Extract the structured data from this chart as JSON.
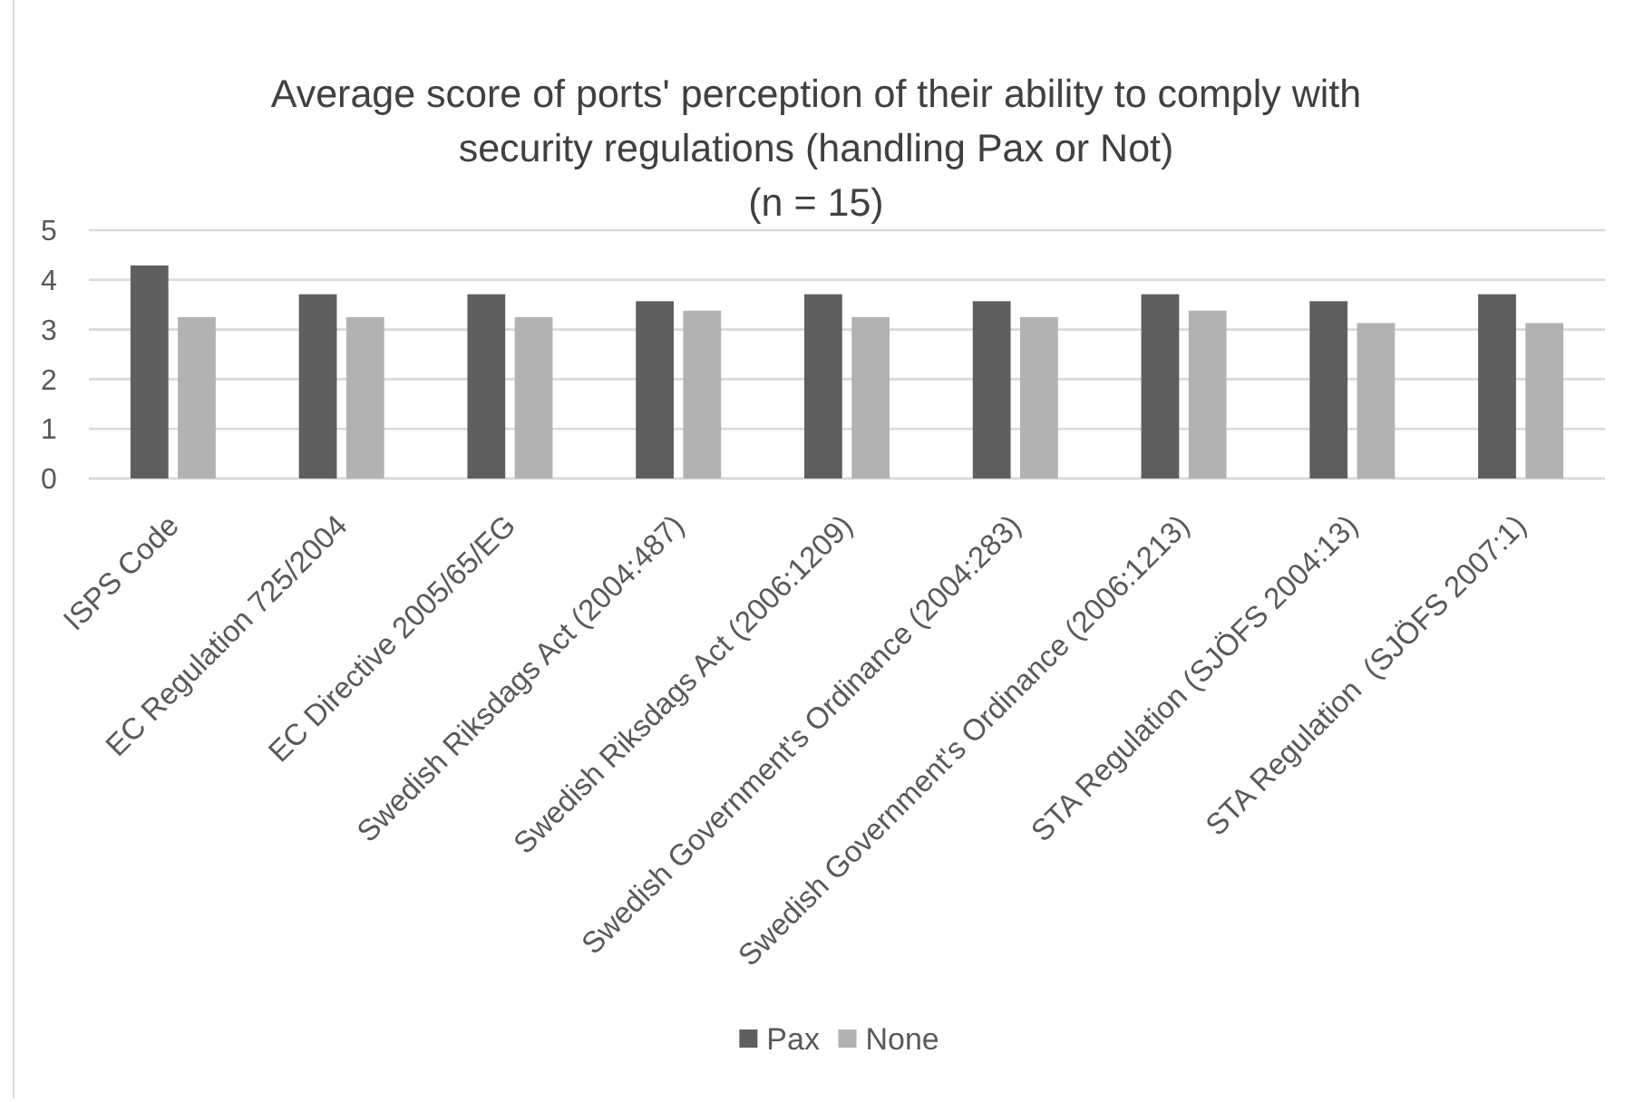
{
  "chart_data": {
    "type": "bar",
    "title": "Average score of ports' perception of their ability to comply with\nsecurity regulations (handling Pax or Not)\n(n = 15)",
    "categories": [
      "ISPS Code",
      "EC Regulation 725/2004",
      "EC Directive 2005/65/EG",
      "Swedish Riksdags Act (2004:487)",
      "Swedish Riksdags Act (2006:1209)",
      "Swedish Government's Ordinance (2004:283)",
      "Swedish Government's Ordinance (2006:1213)",
      "STA Regulation (SJÖFS 2004:13)",
      "STA Regulation  (SJÖFS 2007:1)"
    ],
    "series": [
      {
        "name": "Pax",
        "color": "#5f5f5f",
        "values": [
          4.29,
          3.71,
          3.71,
          3.57,
          3.71,
          3.57,
          3.71,
          3.57,
          3.71
        ]
      },
      {
        "name": "None",
        "color": "#b2b2b2",
        "values": [
          3.25,
          3.25,
          3.25,
          3.38,
          3.25,
          3.25,
          3.38,
          3.13,
          3.13
        ]
      }
    ],
    "ylim": [
      0,
      5
    ],
    "yticks": [
      0,
      1,
      2,
      3,
      4,
      5
    ],
    "grid": "y",
    "legend": "bottom"
  }
}
